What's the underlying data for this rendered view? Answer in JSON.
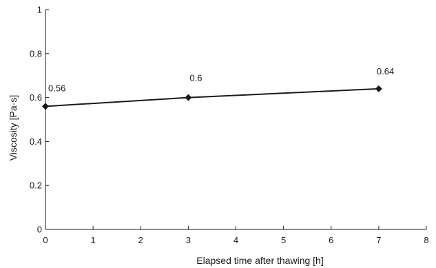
{
  "chart_data": {
    "type": "line",
    "title": "",
    "xlabel": "Elapsed time after thawing [h]",
    "ylabel": "Viscosity [Pa·s]",
    "xlim": [
      0,
      8
    ],
    "ylim": [
      0,
      1
    ],
    "x_ticks": [
      "0",
      "1",
      "2",
      "3",
      "4",
      "5",
      "6",
      "7",
      "8"
    ],
    "y_ticks": [
      "0",
      "0.2",
      "0.4",
      "0.6",
      "0.8",
      "1"
    ],
    "grid": false,
    "legend": "none",
    "series": [
      {
        "x": [
          0,
          3,
          7
        ],
        "y": [
          0.56,
          0.6,
          0.64
        ],
        "labels": [
          "0.56",
          "0.6",
          "0.64"
        ],
        "marker": "diamond",
        "color": "#1a1a1a"
      }
    ]
  }
}
